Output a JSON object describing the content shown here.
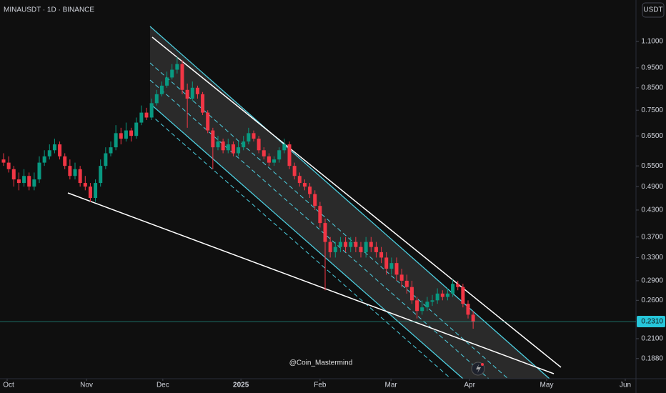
{
  "chart_data": {
    "type": "candlestick",
    "title": "MINAUSDT · 1D · BINANCE",
    "currency_button": "USDT",
    "watermark": "@Coin_Mastermind",
    "log_scale": true,
    "up_color": "#089981",
    "down_color": "#f23645",
    "ylim": [
      0.168,
      1.386
    ],
    "yticks": [
      {
        "value": 1.1,
        "label": "1.1000"
      },
      {
        "value": 0.95,
        "label": "0.9500"
      },
      {
        "value": 0.85,
        "label": "0.8500"
      },
      {
        "value": 0.75,
        "label": "0.7500"
      },
      {
        "value": 0.65,
        "label": "0.6500"
      },
      {
        "value": 0.55,
        "label": "0.5500"
      },
      {
        "value": 0.49,
        "label": "0.4900"
      },
      {
        "value": 0.43,
        "label": "0.4300"
      },
      {
        "value": 0.37,
        "label": "0.3700"
      },
      {
        "value": 0.33,
        "label": "0.3300"
      },
      {
        "value": 0.29,
        "label": "0.2900"
      },
      {
        "value": 0.26,
        "label": "0.2600"
      },
      {
        "value": 0.21,
        "label": "0.2100"
      },
      {
        "value": 0.188,
        "label": "0.1880"
      }
    ],
    "xlim": [
      -0.7,
      123.9
    ],
    "xticks": [
      {
        "value": 0.7,
        "label": "Oct"
      },
      {
        "value": 16.25,
        "label": "Nov"
      },
      {
        "value": 31.2,
        "label": "Dec"
      },
      {
        "value": 46.5,
        "label": "2025"
      },
      {
        "value": 62.0,
        "label": "Feb"
      },
      {
        "value": 75.9,
        "label": "Mar"
      },
      {
        "value": 91.3,
        "label": "Apr"
      },
      {
        "value": 106.4,
        "label": "May"
      },
      {
        "value": 121.8,
        "label": "Jun"
      }
    ],
    "last_price": {
      "value": 0.231,
      "label": "0.2310"
    },
    "open": [
      0.57,
      0.56,
      0.54,
      0.51,
      0.5,
      0.52,
      0.49,
      0.51,
      0.56,
      0.58,
      0.6,
      0.62,
      0.58,
      0.55,
      0.52,
      0.54,
      0.5,
      0.49,
      0.46,
      0.5,
      0.55,
      0.59,
      0.61,
      0.66,
      0.64,
      0.67,
      0.65,
      0.7,
      0.74,
      0.72,
      0.78,
      0.82,
      0.86,
      0.9,
      0.94,
      0.97,
      0.84,
      0.8,
      0.85,
      0.82,
      0.74,
      0.67,
      0.61,
      0.63,
      0.6,
      0.62,
      0.59,
      0.61,
      0.63,
      0.66,
      0.64,
      0.6,
      0.58,
      0.56,
      0.57,
      0.6,
      0.62,
      0.55,
      0.52,
      0.5,
      0.49,
      0.47,
      0.44,
      0.4,
      0.36,
      0.34,
      0.35,
      0.36,
      0.35,
      0.36,
      0.35,
      0.34,
      0.36,
      0.35,
      0.34,
      0.33,
      0.31,
      0.32,
      0.3,
      0.29,
      0.28,
      0.26,
      0.245,
      0.25,
      0.258,
      0.26,
      0.27,
      0.265,
      0.27,
      0.285,
      0.28,
      0.255,
      0.24
    ],
    "high": [
      0.59,
      0.58,
      0.55,
      0.53,
      0.54,
      0.53,
      0.53,
      0.58,
      0.6,
      0.62,
      0.64,
      0.63,
      0.59,
      0.57,
      0.56,
      0.55,
      0.52,
      0.5,
      0.51,
      0.57,
      0.61,
      0.63,
      0.69,
      0.68,
      0.7,
      0.68,
      0.72,
      0.77,
      0.76,
      0.8,
      0.84,
      0.88,
      0.93,
      0.97,
      1.01,
      0.99,
      0.87,
      0.88,
      0.86,
      0.83,
      0.75,
      0.68,
      0.65,
      0.64,
      0.64,
      0.63,
      0.63,
      0.65,
      0.68,
      0.67,
      0.65,
      0.61,
      0.59,
      0.58,
      0.61,
      0.64,
      0.63,
      0.56,
      0.53,
      0.51,
      0.5,
      0.48,
      0.45,
      0.41,
      0.37,
      0.36,
      0.37,
      0.37,
      0.37,
      0.37,
      0.36,
      0.37,
      0.37,
      0.36,
      0.35,
      0.34,
      0.33,
      0.33,
      0.31,
      0.3,
      0.29,
      0.265,
      0.26,
      0.265,
      0.268,
      0.278,
      0.275,
      0.278,
      0.292,
      0.29,
      0.285,
      0.26,
      0.245
    ],
    "low": [
      0.55,
      0.53,
      0.49,
      0.48,
      0.49,
      0.48,
      0.48,
      0.5,
      0.55,
      0.57,
      0.59,
      0.57,
      0.54,
      0.51,
      0.51,
      0.49,
      0.48,
      0.45,
      0.45,
      0.49,
      0.54,
      0.58,
      0.6,
      0.62,
      0.63,
      0.63,
      0.64,
      0.69,
      0.71,
      0.71,
      0.77,
      0.81,
      0.85,
      0.89,
      0.92,
      0.82,
      0.68,
      0.79,
      0.8,
      0.73,
      0.66,
      0.54,
      0.6,
      0.59,
      0.59,
      0.58,
      0.58,
      0.6,
      0.62,
      0.63,
      0.59,
      0.57,
      0.55,
      0.55,
      0.56,
      0.59,
      0.54,
      0.51,
      0.49,
      0.48,
      0.46,
      0.43,
      0.39,
      0.275,
      0.33,
      0.33,
      0.34,
      0.34,
      0.34,
      0.34,
      0.33,
      0.33,
      0.34,
      0.33,
      0.32,
      0.3,
      0.3,
      0.29,
      0.28,
      0.27,
      0.255,
      0.235,
      0.24,
      0.245,
      0.252,
      0.255,
      0.26,
      0.26,
      0.265,
      0.275,
      0.25,
      0.235,
      0.222
    ],
    "close": [
      0.56,
      0.54,
      0.51,
      0.5,
      0.52,
      0.49,
      0.51,
      0.56,
      0.58,
      0.6,
      0.62,
      0.58,
      0.55,
      0.52,
      0.54,
      0.5,
      0.49,
      0.46,
      0.5,
      0.55,
      0.59,
      0.61,
      0.66,
      0.64,
      0.67,
      0.65,
      0.7,
      0.74,
      0.72,
      0.78,
      0.82,
      0.86,
      0.9,
      0.94,
      0.97,
      0.84,
      0.8,
      0.85,
      0.82,
      0.74,
      0.67,
      0.61,
      0.63,
      0.6,
      0.62,
      0.59,
      0.61,
      0.63,
      0.66,
      0.64,
      0.6,
      0.58,
      0.56,
      0.57,
      0.6,
      0.62,
      0.55,
      0.52,
      0.5,
      0.49,
      0.47,
      0.44,
      0.4,
      0.36,
      0.34,
      0.35,
      0.36,
      0.35,
      0.36,
      0.35,
      0.34,
      0.36,
      0.35,
      0.34,
      0.33,
      0.31,
      0.32,
      0.3,
      0.29,
      0.28,
      0.26,
      0.245,
      0.25,
      0.258,
      0.26,
      0.27,
      0.265,
      0.27,
      0.285,
      0.28,
      0.255,
      0.24,
      0.231
    ]
  }
}
